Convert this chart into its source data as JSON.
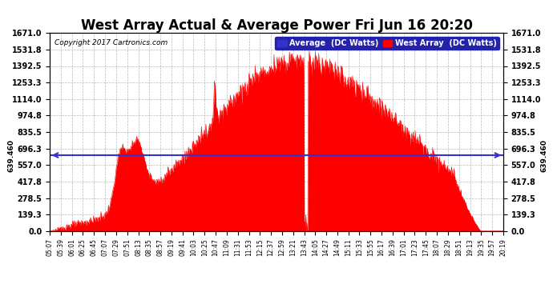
{
  "title": "West Array Actual & Average Power Fri Jun 16 20:20",
  "copyright": "Copyright 2017 Cartronics.com",
  "legend_avg": "Average  (DC Watts)",
  "legend_west": "West Array  (DC Watts)",
  "avg_value": 639.46,
  "yticks": [
    0.0,
    139.3,
    278.5,
    417.8,
    557.0,
    696.3,
    835.5,
    974.8,
    1114.0,
    1253.3,
    1392.5,
    1531.8,
    1671.0
  ],
  "ymax": 1671.0,
  "ymin": 0.0,
  "bar_color": "#FF0000",
  "avg_line_color": "#3333CC",
  "background_color": "#FFFFFF",
  "grid_color": "#AAAAAA",
  "title_fontsize": 12,
  "xtick_labels": [
    "05:07",
    "05:39",
    "06:01",
    "06:25",
    "06:45",
    "07:07",
    "07:29",
    "07:51",
    "08:13",
    "08:35",
    "08:57",
    "09:19",
    "09:41",
    "10:03",
    "10:25",
    "10:47",
    "11:09",
    "11:31",
    "11:53",
    "12:15",
    "12:37",
    "12:59",
    "13:21",
    "13:43",
    "14:05",
    "14:27",
    "14:49",
    "15:11",
    "15:33",
    "15:55",
    "16:17",
    "16:39",
    "17:01",
    "17:23",
    "17:45",
    "18:07",
    "18:29",
    "18:51",
    "19:13",
    "19:35",
    "19:57",
    "20:19"
  ]
}
